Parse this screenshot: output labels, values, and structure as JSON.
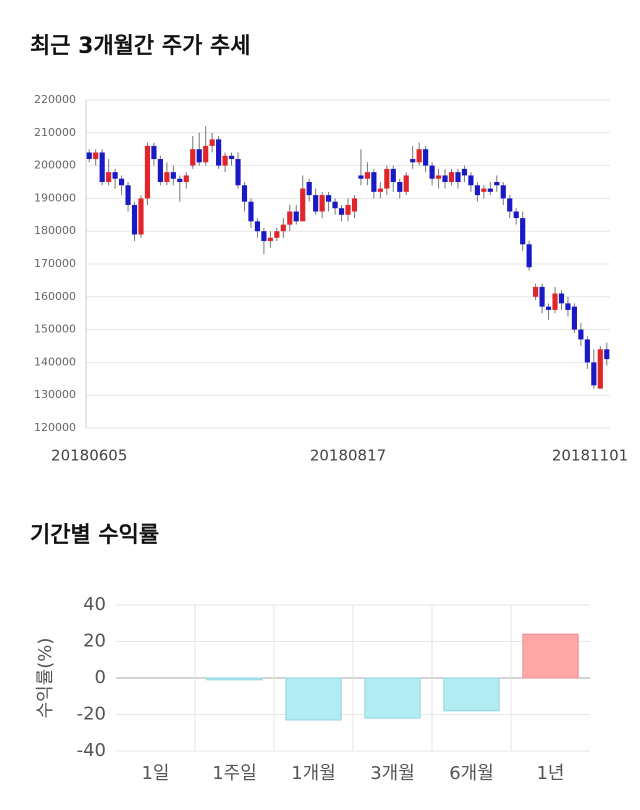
{
  "chart_data": [
    {
      "type": "candlestick",
      "title": "최근 3개월간 주가 추세",
      "categories": [
        "20180605",
        null,
        null,
        null,
        null,
        null,
        null,
        null,
        null,
        null,
        null,
        null,
        null,
        null,
        null,
        null,
        null,
        null,
        null,
        null,
        null,
        null,
        null,
        null,
        null,
        null,
        null,
        null,
        null,
        null,
        null,
        null,
        null,
        null,
        null,
        null,
        null,
        null,
        null,
        null,
        "20180817",
        null,
        null,
        null,
        null,
        null,
        null,
        null,
        null,
        null,
        null,
        null,
        null,
        null,
        null,
        null,
        null,
        null,
        null,
        null,
        null,
        null,
        null,
        null,
        null,
        null,
        null,
        null,
        null,
        null,
        null,
        null,
        null,
        null,
        null,
        null,
        null,
        null,
        null,
        null,
        "20181101"
      ],
      "open": [
        204000,
        202000,
        204000,
        195000,
        198000,
        196000,
        194000,
        188000,
        179000,
        190000,
        206000,
        202000,
        195000,
        198000,
        196000,
        195000,
        200000,
        205000,
        201000,
        206000,
        208000,
        200000,
        203000,
        202000,
        194000,
        189000,
        183000,
        180000,
        177000,
        178000,
        180000,
        182000,
        186000,
        183000,
        195000,
        191000,
        186000,
        191000,
        189000,
        187000,
        185000,
        186000,
        197000,
        196000,
        198000,
        192000,
        193000,
        199000,
        195000,
        192000,
        202000,
        201000,
        205000,
        200000,
        196000,
        197000,
        195000,
        198000,
        199000,
        197000,
        194000,
        192000,
        193000,
        195000,
        194000,
        190000,
        186000,
        184000,
        176000,
        160000,
        163000,
        157000,
        156000,
        161000,
        158000,
        157000,
        150000,
        147000,
        140000,
        132000,
        144000
      ],
      "high": [
        205000,
        205000,
        205000,
        202000,
        199000,
        197000,
        195000,
        189000,
        191000,
        207000,
        207000,
        203000,
        201000,
        200000,
        197000,
        198000,
        209000,
        210000,
        212000,
        210000,
        209000,
        204000,
        204000,
        204000,
        195000,
        190000,
        184000,
        181000,
        180000,
        181000,
        184000,
        188000,
        188000,
        197000,
        196000,
        193000,
        192000,
        192000,
        190000,
        188000,
        190000,
        191000,
        205000,
        201000,
        199000,
        195000,
        200000,
        200000,
        196000,
        198000,
        206000,
        207000,
        206000,
        201000,
        199000,
        199000,
        199000,
        199000,
        200000,
        198000,
        195000,
        194000,
        195000,
        197000,
        195000,
        191000,
        187000,
        186000,
        177000,
        164000,
        164000,
        158000,
        163000,
        162000,
        160000,
        158000,
        152000,
        148000,
        144000,
        145000,
        146000
      ],
      "low": [
        201000,
        200000,
        194000,
        194000,
        193000,
        191000,
        186000,
        177000,
        178000,
        188000,
        200000,
        194000,
        194000,
        194000,
        189000,
        193000,
        199000,
        200000,
        200000,
        204000,
        199000,
        198000,
        200000,
        193000,
        186000,
        181000,
        178000,
        173000,
        175000,
        177000,
        178000,
        180000,
        182000,
        183000,
        189000,
        185000,
        184000,
        186000,
        185000,
        183000,
        183000,
        184000,
        194000,
        194000,
        190000,
        190000,
        191000,
        192000,
        190000,
        191000,
        199000,
        200000,
        198000,
        194000,
        193000,
        193000,
        194000,
        193000,
        195000,
        192000,
        189000,
        190000,
        191000,
        192000,
        188000,
        184000,
        182000,
        174000,
        168000,
        159000,
        155000,
        153000,
        155000,
        156000,
        154000,
        149000,
        145000,
        138000,
        132000,
        132000,
        139000
      ],
      "close": [
        202000,
        204000,
        195000,
        198000,
        196000,
        194000,
        188000,
        179000,
        190000,
        206000,
        202000,
        195000,
        198000,
        196000,
        195000,
        197000,
        205000,
        201000,
        206000,
        208000,
        200000,
        203000,
        202000,
        194000,
        189000,
        183000,
        180000,
        177000,
        178000,
        180000,
        182000,
        186000,
        183000,
        193000,
        191000,
        186000,
        191000,
        189000,
        187000,
        185000,
        188000,
        190000,
        196000,
        198000,
        192000,
        193000,
        199000,
        195000,
        192000,
        197000,
        201000,
        205000,
        200000,
        196000,
        197000,
        195000,
        198000,
        195000,
        197000,
        194000,
        191000,
        193000,
        192000,
        194000,
        190000,
        186000,
        184000,
        176000,
        169000,
        163000,
        157000,
        156000,
        161000,
        158000,
        156000,
        150000,
        147000,
        140000,
        133000,
        144000,
        141000
      ],
      "up_color": "#e0262b",
      "down_color": "#1a1ac4",
      "ylim": [
        120000,
        220000
      ],
      "yticks": [
        120000,
        130000,
        140000,
        150000,
        160000,
        170000,
        180000,
        190000,
        200000,
        210000,
        220000
      ],
      "grid": true
    },
    {
      "type": "bar",
      "title": "기간별 수익률",
      "y_label": "수익률(%)",
      "categories": [
        "1일",
        "1주일",
        "1개월",
        "3개월",
        "6개월",
        "1년"
      ],
      "values": [
        0,
        -1,
        -23,
        -22,
        -18,
        24
      ],
      "positive_color": "#ffa6a6",
      "negative_color": "#b3ebf3",
      "ylim": [
        -40,
        40
      ],
      "yticks": [
        -40,
        -20,
        0,
        20,
        40
      ],
      "grid": true
    }
  ]
}
